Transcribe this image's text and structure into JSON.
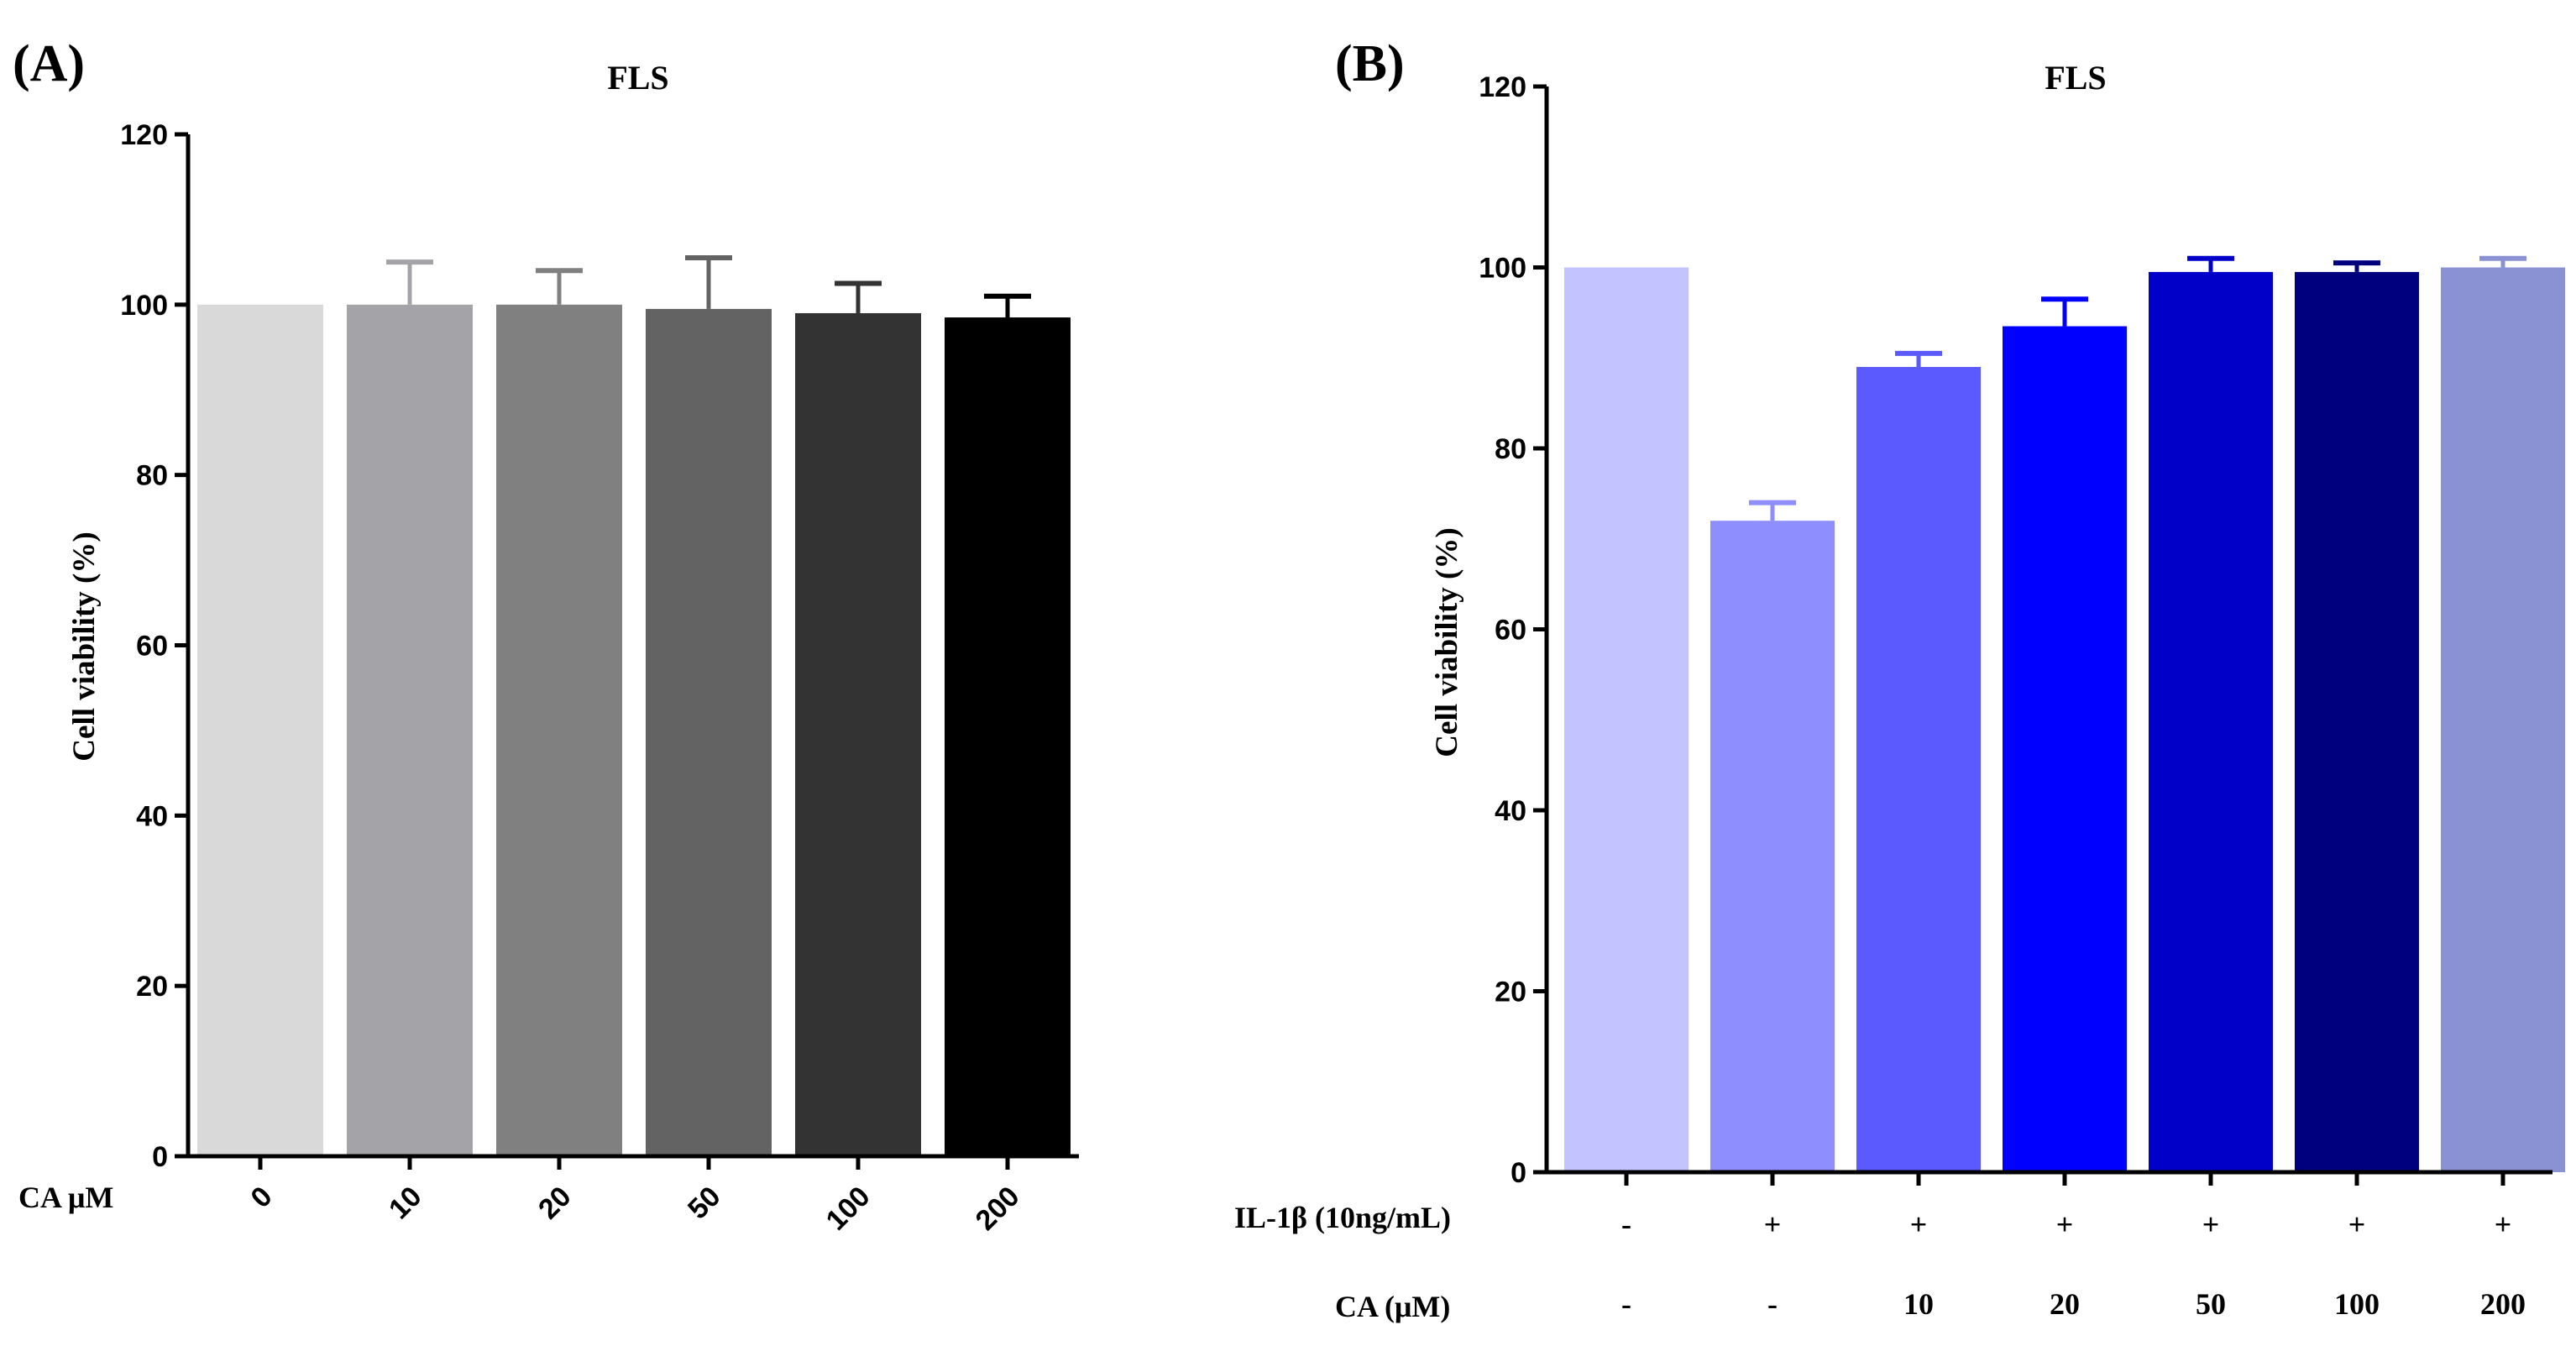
{
  "chart_data": [
    {
      "panel": "(A)",
      "type": "bar",
      "title": "FLS",
      "ylabel": "Cell viability (%)",
      "xlabel": "CA μM",
      "ylim": [
        0,
        120
      ],
      "yticks": [
        0,
        20,
        40,
        60,
        80,
        100,
        120
      ],
      "categories": [
        "0",
        "10",
        "20",
        "50",
        "100",
        "200"
      ],
      "values": [
        100,
        100,
        100,
        99.5,
        99,
        98.5
      ],
      "errors": [
        0,
        5,
        4,
        6,
        3.5,
        2.5
      ],
      "colors": [
        "#d9d9d9",
        "#a4a3a8",
        "#808080",
        "#636363",
        "#333333",
        "#000000"
      ]
    },
    {
      "panel": "(B)",
      "type": "bar",
      "title": "FLS",
      "ylabel": "Cell viability (%)",
      "ylim": [
        0,
        120
      ],
      "yticks": [
        0,
        20,
        40,
        60,
        80,
        100,
        120
      ],
      "values": [
        100,
        72,
        89,
        93.5,
        99.5,
        99.5,
        100
      ],
      "errors": [
        0,
        2,
        1.5,
        3,
        1.5,
        1,
        1
      ],
      "colors": [
        "#c3c3ff",
        "#8e8eff",
        "#5a5aff",
        "#0000ff",
        "#0000c8",
        "#00007e",
        "#8a92d4"
      ],
      "row_labels": [
        {
          "label": "IL-1β (10ng/mL)",
          "values": [
            "-",
            "+",
            "+",
            "+",
            "+",
            "+",
            "+"
          ]
        },
        {
          "label": "CA (μM)",
          "values": [
            "-",
            "-",
            "10",
            "20",
            "50",
            "100",
            "200"
          ]
        }
      ]
    }
  ]
}
